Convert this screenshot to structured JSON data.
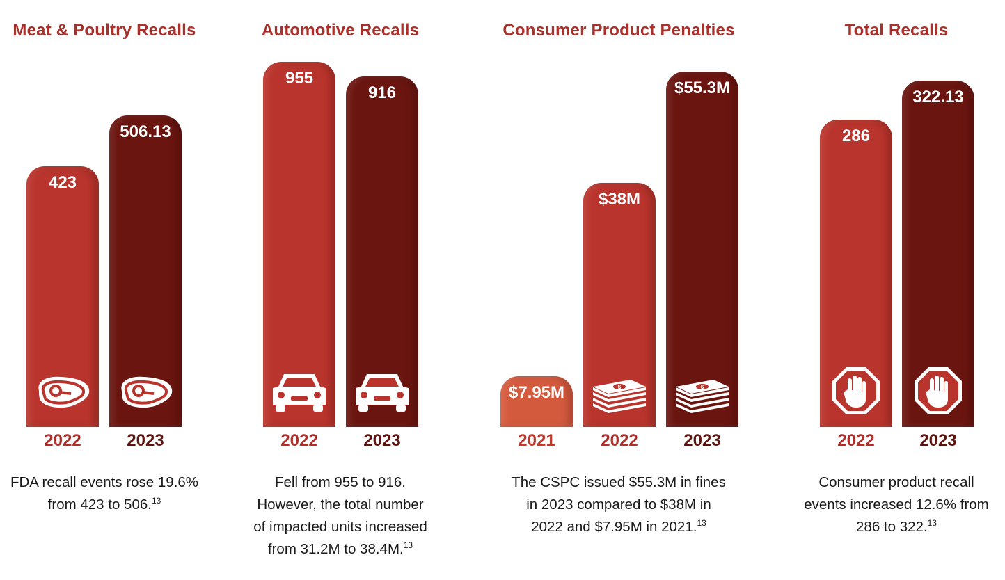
{
  "colors": {
    "title": "#a9302b",
    "bar_dark": "#6b1510",
    "bar_red": "#b9342c",
    "bar_orange": "#d45a3e"
  },
  "chart_data": [
    {
      "type": "bar",
      "title": "Meat & Poultry Recalls",
      "categories": [
        "2022",
        "2023"
      ],
      "values": [
        423,
        506.13
      ],
      "value_labels": [
        "423",
        "506.13"
      ],
      "bar_colors": [
        "#b9342c",
        "#6b1510"
      ],
      "label_colors": [
        "#a9302b",
        "#5e1410"
      ],
      "icon": "steak-icon",
      "caption": {
        "lines": [
          "FDA recall events rose 19.6%",
          "from 423 to 506."
        ],
        "footnote": "13"
      }
    },
    {
      "type": "bar",
      "title": "Automotive Recalls",
      "categories": [
        "2022",
        "2023"
      ],
      "values": [
        955,
        916
      ],
      "value_labels": [
        "955",
        "916"
      ],
      "bar_colors": [
        "#b9342c",
        "#6b1510"
      ],
      "label_colors": [
        "#a9302b",
        "#5e1410"
      ],
      "icon": "car-icon",
      "caption": {
        "lines": [
          "Fell from 955 to 916.",
          "However, the total number",
          "of impacted units increased",
          "from 31.2M to 38.4M."
        ],
        "footnote": "13"
      }
    },
    {
      "type": "bar",
      "title": "Consumer Product Penalties",
      "categories": [
        "2021",
        "2022",
        "2023"
      ],
      "values": [
        7.95,
        38,
        55.3
      ],
      "value_labels": [
        "$7.95M",
        "$38M",
        "$55.3M"
      ],
      "bar_colors": [
        "#d45a3e",
        "#b9342c",
        "#6b1510"
      ],
      "label_colors": [
        "#c0392b",
        "#a9302b",
        "#5e1410"
      ],
      "icon": "money-stack-icon",
      "icon_bars": [
        false,
        true,
        true
      ],
      "caption": {
        "lines": [
          "The CSPC issued $55.3M in fines",
          "in 2023 compared to $38M in",
          "2022 and $7.95M in 2021."
        ],
        "footnote": "13"
      }
    },
    {
      "type": "bar",
      "title": "Total Recalls",
      "categories": [
        "2022",
        "2023"
      ],
      "values": [
        286,
        322.13
      ],
      "value_labels": [
        "286",
        "322.13"
      ],
      "bar_colors": [
        "#b9342c",
        "#6b1510"
      ],
      "label_colors": [
        "#a9302b",
        "#5e1410"
      ],
      "icon": "stop-hand-icon",
      "caption": {
        "lines": [
          "Consumer product recall",
          "events increased 12.6% from",
          "286 to 322."
        ],
        "footnote": "13"
      }
    }
  ]
}
